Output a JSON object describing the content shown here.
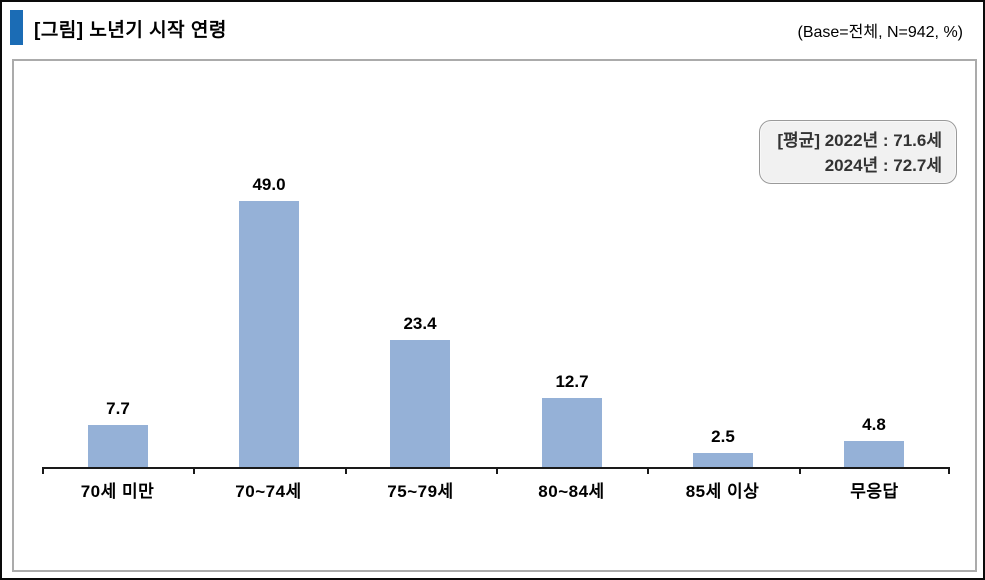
{
  "header": {
    "title": "[그림] 노년기 시작 연령",
    "base_info": "(Base=전체,  N=942,  %)",
    "marker_color": "#1b6cb5"
  },
  "annotation": {
    "line1": "[평균] 2022년 : 71.6세",
    "line2": "2024년 : 72.7세"
  },
  "chart_data": {
    "type": "bar",
    "title": "[그림] 노년기 시작 연령",
    "subtitle": "(Base=전체, N=942, %)",
    "categories": [
      "70세 미만",
      "70~74세",
      "75~79세",
      "80~84세",
      "85세 이상",
      "무응답"
    ],
    "values": [
      7.7,
      49.0,
      23.4,
      12.7,
      2.5,
      4.8
    ],
    "value_labels": [
      "7.7",
      "49.0",
      "23.4",
      "12.7",
      "2.5",
      "4.8"
    ],
    "unit": "%",
    "bar_color": "#95b1d7",
    "axis_color": "#1a1a1a",
    "ylim": [
      0,
      75
    ],
    "grid": false,
    "legend": "none",
    "annotations": {
      "average_2022": "71.6세",
      "average_2024": "72.7세"
    }
  }
}
